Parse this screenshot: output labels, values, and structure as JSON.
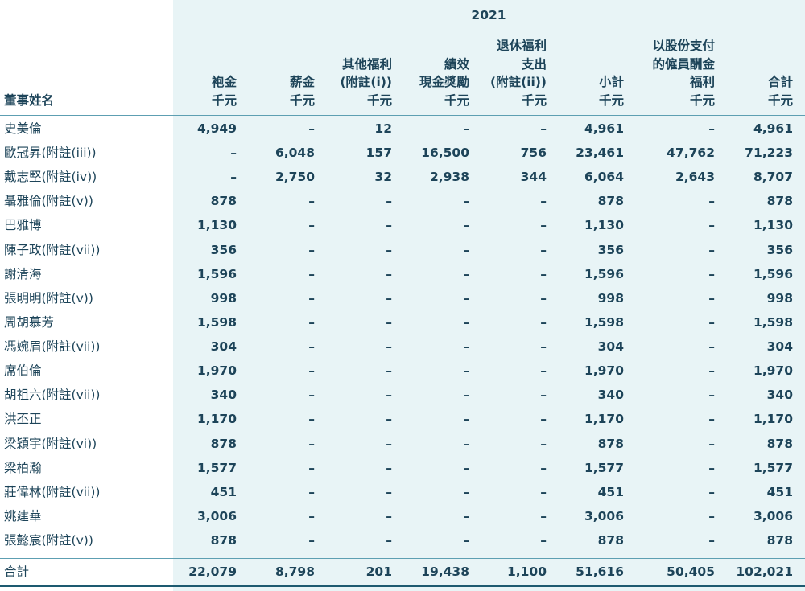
{
  "table": {
    "year": "2021",
    "name_header": "董事姓名",
    "columns": [
      {
        "lines": [
          "袍金"
        ],
        "unit": "千元"
      },
      {
        "lines": [
          "薪金"
        ],
        "unit": "千元"
      },
      {
        "lines": [
          "其他福利",
          "(附註(i))"
        ],
        "unit": "千元"
      },
      {
        "lines": [
          "績效",
          "現金獎勵"
        ],
        "unit": "千元"
      },
      {
        "lines": [
          "退休福利",
          "支出",
          "(附註(ii))"
        ],
        "unit": "千元"
      },
      {
        "lines": [
          "小計"
        ],
        "unit": "千元"
      },
      {
        "lines": [
          "以股份支付",
          "的僱員酬金",
          "福利"
        ],
        "unit": "千元"
      },
      {
        "lines": [
          "合計"
        ],
        "unit": "千元"
      }
    ],
    "rows": [
      {
        "name": "史美倫",
        "cells": [
          "4,949",
          "–",
          "12",
          "–",
          "–",
          "4,961",
          "–",
          "4,961"
        ]
      },
      {
        "name": "歐冠昇(附註(iii))",
        "cells": [
          "–",
          "6,048",
          "157",
          "16,500",
          "756",
          "23,461",
          "47,762",
          "71,223"
        ]
      },
      {
        "name": "戴志堅(附註(iv))",
        "cells": [
          "–",
          "2,750",
          "32",
          "2,938",
          "344",
          "6,064",
          "2,643",
          "8,707"
        ]
      },
      {
        "name": "聶雅倫(附註(v))",
        "cells": [
          "878",
          "–",
          "–",
          "–",
          "–",
          "878",
          "–",
          "878"
        ]
      },
      {
        "name": "巴雅博",
        "cells": [
          "1,130",
          "–",
          "–",
          "–",
          "–",
          "1,130",
          "–",
          "1,130"
        ]
      },
      {
        "name": "陳子政(附註(vii))",
        "cells": [
          "356",
          "–",
          "–",
          "–",
          "–",
          "356",
          "–",
          "356"
        ]
      },
      {
        "name": "謝清海",
        "cells": [
          "1,596",
          "–",
          "–",
          "–",
          "–",
          "1,596",
          "–",
          "1,596"
        ]
      },
      {
        "name": "張明明(附註(v))",
        "cells": [
          "998",
          "–",
          "–",
          "–",
          "–",
          "998",
          "–",
          "998"
        ]
      },
      {
        "name": "周胡慕芳",
        "cells": [
          "1,598",
          "–",
          "–",
          "–",
          "–",
          "1,598",
          "–",
          "1,598"
        ]
      },
      {
        "name": "馮婉眉(附註(vii))",
        "cells": [
          "304",
          "–",
          "–",
          "–",
          "–",
          "304",
          "–",
          "304"
        ]
      },
      {
        "name": "席伯倫",
        "cells": [
          "1,970",
          "–",
          "–",
          "–",
          "–",
          "1,970",
          "–",
          "1,970"
        ]
      },
      {
        "name": "胡祖六(附註(vii))",
        "cells": [
          "340",
          "–",
          "–",
          "–",
          "–",
          "340",
          "–",
          "340"
        ]
      },
      {
        "name": "洪丕正",
        "cells": [
          "1,170",
          "–",
          "–",
          "–",
          "–",
          "1,170",
          "–",
          "1,170"
        ]
      },
      {
        "name": "梁穎宇(附註(vi))",
        "cells": [
          "878",
          "–",
          "–",
          "–",
          "–",
          "878",
          "–",
          "878"
        ]
      },
      {
        "name": "梁柏瀚",
        "cells": [
          "1,577",
          "–",
          "–",
          "–",
          "–",
          "1,577",
          "–",
          "1,577"
        ]
      },
      {
        "name": "莊偉林(附註(vii))",
        "cells": [
          "451",
          "–",
          "–",
          "–",
          "–",
          "451",
          "–",
          "451"
        ]
      },
      {
        "name": "姚建華",
        "cells": [
          "3,006",
          "–",
          "–",
          "–",
          "–",
          "3,006",
          "–",
          "3,006"
        ]
      },
      {
        "name": "張懿宸(附註(v))",
        "cells": [
          "878",
          "–",
          "–",
          "–",
          "–",
          "878",
          "–",
          "878"
        ]
      }
    ],
    "total": {
      "name": "合計",
      "cells": [
        "22,079",
        "8,798",
        "201",
        "19,438",
        "1,100",
        "51,616",
        "50,405",
        "102,021"
      ]
    }
  }
}
